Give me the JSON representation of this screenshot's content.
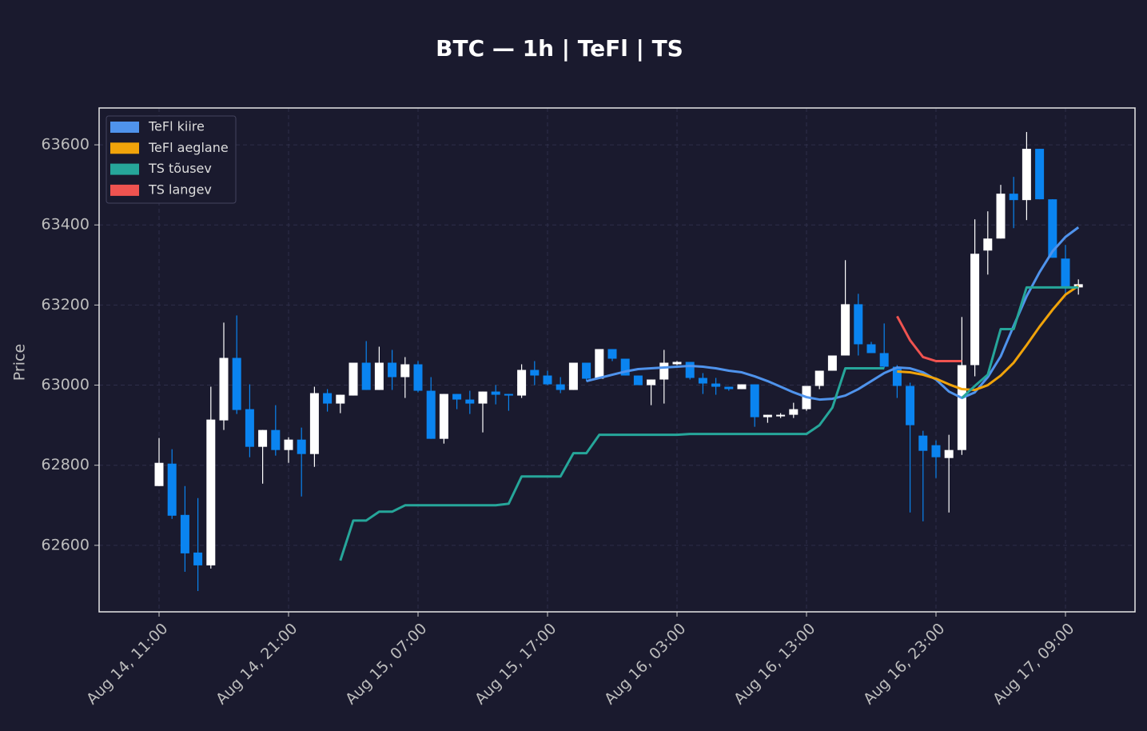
{
  "chart_data": {
    "type": "candlestick",
    "title": "BTC — 1h  |  TeFl  |  TS",
    "y_label": "Price",
    "x": [
      "Aug 14, 11:00",
      null,
      null,
      null,
      null,
      null,
      null,
      null,
      null,
      null,
      "Aug 14, 21:00",
      null,
      null,
      null,
      null,
      null,
      null,
      null,
      null,
      null,
      "Aug 15, 07:00",
      null,
      null,
      null,
      null,
      null,
      null,
      null,
      null,
      null,
      "Aug 15, 17:00",
      null,
      null,
      null,
      null,
      null,
      null,
      null,
      null,
      null,
      "Aug 16, 03:00",
      null,
      null,
      null,
      null,
      null,
      null,
      null,
      null,
      null,
      "Aug 16, 13:00",
      null,
      null,
      null,
      null,
      null,
      null,
      null,
      null,
      null,
      "Aug 16, 23:00",
      null,
      null,
      null,
      null,
      null,
      null,
      null,
      null,
      null,
      "Aug 17, 09:00",
      null
    ],
    "open": [
      62748,
      62804,
      62676,
      62582,
      62550,
      62912,
      63068,
      62940,
      62846,
      62888,
      62838,
      62864,
      62828,
      62980,
      62954,
      62974,
      63056,
      62988,
      63056,
      63020,
      63052,
      62986,
      62866,
      62978,
      62964,
      62954,
      62984,
      62978,
      62974,
      63038,
      63024,
      63002,
      62988,
      63056,
      63016,
      63090,
      63066,
      63024,
      63000,
      63014,
      63052,
      63058,
      63018,
      63004,
      62996,
      62990,
      63002,
      62920,
      62922,
      62926,
      62940,
      62998,
      63036,
      63074,
      63202,
      63102,
      63080,
      63046,
      62998,
      62874,
      62850,
      62818,
      62838,
      63050,
      63336,
      63366,
      63478,
      63462,
      63590,
      63464,
      63316,
      63244
    ],
    "high": [
      62868,
      62840,
      62748,
      62718,
      62996,
      63156,
      63174,
      63002,
      62888,
      62950,
      62870,
      62894,
      62996,
      62990,
      62976,
      63056,
      63110,
      63096,
      63088,
      63070,
      63060,
      63020,
      62978,
      62978,
      62986,
      62984,
      63000,
      62978,
      63052,
      63060,
      63036,
      63020,
      63056,
      63056,
      63090,
      63090,
      63066,
      63024,
      63014,
      63088,
      63060,
      63058,
      63030,
      63018,
      62996,
      63002,
      63002,
      62926,
      62930,
      62956,
      62998,
      63036,
      63074,
      63312,
      63228,
      63108,
      63154,
      63050,
      63006,
      62886,
      62862,
      62876,
      63170,
      63414,
      63434,
      63500,
      63520,
      63632,
      63590,
      63464,
      63350,
      63264
    ],
    "low": [
      62748,
      62666,
      62534,
      62486,
      62542,
      62888,
      62928,
      62820,
      62754,
      62824,
      62806,
      62722,
      62796,
      62934,
      62930,
      62974,
      62988,
      62988,
      62988,
      62968,
      62982,
      62866,
      62854,
      62940,
      62928,
      62882,
      62952,
      62936,
      62968,
      63000,
      63000,
      62980,
      62988,
      63010,
      63016,
      63060,
      63024,
      63000,
      62950,
      62954,
      63050,
      63014,
      62978,
      62976,
      62986,
      62990,
      62896,
      62906,
      62918,
      62918,
      62936,
      62990,
      63036,
      63074,
      63074,
      63080,
      63042,
      62968,
      62682,
      62660,
      62768,
      62682,
      62826,
      63022,
      63276,
      63366,
      63392,
      63412,
      63464,
      63318,
      63226,
      63226
    ],
    "close": [
      62806,
      62674,
      62580,
      62550,
      62914,
      63068,
      62938,
      62846,
      62888,
      62838,
      62864,
      62828,
      62980,
      62954,
      62976,
      63056,
      62988,
      63056,
      63020,
      63052,
      62986,
      62866,
      62978,
      62964,
      62954,
      62984,
      62976,
      62974,
      63038,
      63024,
      63002,
      62988,
      63056,
      63016,
      63090,
      63066,
      63024,
      63000,
      63014,
      63056,
      63058,
      63018,
      63004,
      62996,
      62990,
      63002,
      62920,
      62926,
      62926,
      62940,
      62998,
      63036,
      63074,
      63202,
      63102,
      63080,
      63046,
      62998,
      62900,
      62836,
      62820,
      62838,
      63050,
      63328,
      63366,
      63478,
      63462,
      63590,
      63464,
      63318,
      63244,
      63252
    ],
    "up_color": "#ffffff",
    "down_color": "#0a84f0",
    "series": [
      {
        "name": "TeFl kiire",
        "color": "#4f93ec",
        "values": [
          null,
          null,
          null,
          null,
          null,
          null,
          null,
          null,
          null,
          null,
          null,
          null,
          null,
          null,
          null,
          null,
          null,
          null,
          null,
          null,
          null,
          null,
          null,
          null,
          null,
          null,
          null,
          null,
          null,
          null,
          null,
          null,
          null,
          63010,
          63018,
          63026,
          63034,
          63040,
          63042,
          63044,
          63046,
          63048,
          63046,
          63042,
          63036,
          63032,
          63022,
          63010,
          62996,
          62982,
          62970,
          62964,
          62966,
          62974,
          62990,
          63010,
          63030,
          63044,
          63042,
          63032,
          63014,
          62984,
          62968,
          62982,
          63020,
          63072,
          63148,
          63222,
          63282,
          63334,
          63370,
          63394
        ]
      },
      {
        "name": "TeFl aeglane",
        "color": "#f0a30a",
        "values": [
          null,
          null,
          null,
          null,
          null,
          null,
          null,
          null,
          null,
          null,
          null,
          null,
          null,
          null,
          null,
          null,
          null,
          null,
          null,
          null,
          null,
          null,
          null,
          null,
          null,
          null,
          null,
          null,
          null,
          null,
          null,
          null,
          null,
          null,
          null,
          null,
          null,
          null,
          null,
          null,
          null,
          null,
          null,
          null,
          null,
          null,
          null,
          null,
          null,
          null,
          null,
          null,
          null,
          null,
          null,
          null,
          null,
          63034,
          63032,
          63026,
          63016,
          63002,
          62990,
          62988,
          63000,
          63024,
          63056,
          63100,
          63146,
          63188,
          63226,
          63248
        ]
      },
      {
        "name": "TS tõusev",
        "color": "#26a69a",
        "values": [
          null,
          null,
          null,
          null,
          null,
          null,
          null,
          null,
          null,
          null,
          null,
          null,
          null,
          null,
          62562,
          62662,
          62662,
          62684,
          62684,
          62700,
          62700,
          62700,
          62700,
          62700,
          62700,
          62700,
          62700,
          62704,
          62772,
          62772,
          62772,
          62772,
          62830,
          62830,
          62876,
          62876,
          62876,
          62876,
          62876,
          62876,
          62876,
          62878,
          62878,
          62878,
          62878,
          62878,
          62878,
          62878,
          62878,
          62878,
          62878,
          62900,
          62944,
          63042,
          63042,
          63042,
          63042,
          null,
          null,
          null,
          null,
          null,
          62968,
          62998,
          63026,
          63140,
          63140,
          63244,
          63244,
          63244,
          63244,
          63244
        ]
      },
      {
        "name": "TS langev",
        "color": "#ef5350",
        "values": [
          null,
          null,
          null,
          null,
          null,
          null,
          null,
          null,
          null,
          null,
          null,
          null,
          null,
          null,
          null,
          null,
          null,
          null,
          null,
          null,
          null,
          null,
          null,
          null,
          null,
          null,
          null,
          null,
          null,
          null,
          null,
          null,
          null,
          null,
          null,
          null,
          null,
          null,
          null,
          null,
          null,
          null,
          null,
          null,
          null,
          null,
          null,
          null,
          null,
          null,
          null,
          null,
          null,
          null,
          null,
          null,
          null,
          63172,
          63112,
          63070,
          63060,
          63060,
          63060,
          null,
          null,
          null,
          null,
          null,
          null,
          null,
          null,
          null
        ]
      }
    ],
    "ylim": [
      62434,
      63692
    ],
    "yticks": [
      62600,
      62800,
      63000,
      63200,
      63400,
      63600
    ],
    "grid": true,
    "legend": "upper left"
  }
}
